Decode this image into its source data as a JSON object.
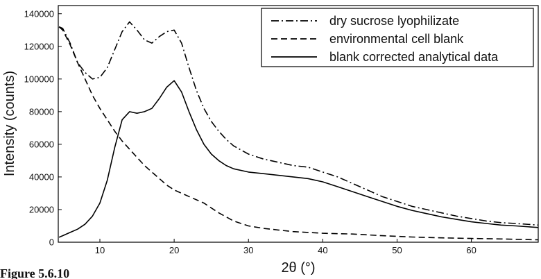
{
  "chart_data": {
    "type": "line",
    "title": "",
    "xlabel": "2θ (°)",
    "ylabel": "Intensity (counts)",
    "caption": "Figure 5.6.10",
    "xlim": [
      4.4,
      69
    ],
    "ylim": [
      0,
      145000
    ],
    "x_ticks": [
      10,
      20,
      30,
      40,
      50,
      60
    ],
    "y_ticks": [
      0,
      20000,
      40000,
      60000,
      80000,
      100000,
      120000,
      140000
    ],
    "x_tick_labels": [
      "10",
      "20",
      "30",
      "40",
      "50",
      "60"
    ],
    "y_tick_labels": [
      "0",
      "20000",
      "40000",
      "60000",
      "80000",
      "100000",
      "120000",
      "140000"
    ],
    "grid": false,
    "legend_position": "top-right",
    "series": [
      {
        "name": "dry sucrose lyophilizate",
        "style": "dashdot",
        "x": [
          4.5,
          5,
          6,
          7,
          8,
          9,
          10,
          11,
          12,
          13,
          14,
          15,
          16,
          17,
          18,
          19,
          20,
          21,
          22,
          23,
          24,
          25,
          26,
          27,
          28,
          30,
          32,
          34,
          36,
          38,
          40,
          42,
          44,
          46,
          48,
          50,
          52,
          54,
          56,
          58,
          60,
          62,
          64,
          66,
          69
        ],
        "y": [
          132000,
          131000,
          122000,
          110000,
          104000,
          100000,
          101000,
          107000,
          118000,
          129000,
          135000,
          130000,
          124000,
          122000,
          126000,
          129000,
          130000,
          122000,
          107000,
          93000,
          82000,
          74000,
          68000,
          63000,
          59000,
          54000,
          51000,
          49000,
          47000,
          46000,
          43000,
          40000,
          36000,
          32000,
          28000,
          25000,
          22000,
          20000,
          18000,
          16000,
          14500,
          13000,
          12000,
          11500,
          10500
        ]
      },
      {
        "name": "environmental cell blank",
        "style": "dashed",
        "x": [
          4.5,
          5,
          6,
          7,
          8,
          9,
          10,
          11,
          12,
          13,
          14,
          15,
          16,
          17,
          18,
          19,
          20,
          22,
          24,
          26,
          28,
          30,
          32,
          34,
          36,
          38,
          40,
          44,
          48,
          52,
          56,
          60,
          64,
          69
        ],
        "y": [
          132000,
          130000,
          121000,
          110000,
          100000,
          90000,
          82000,
          75000,
          68000,
          62000,
          57000,
          52000,
          47000,
          43000,
          39000,
          35000,
          32000,
          28000,
          24000,
          18000,
          13000,
          10000,
          8500,
          7500,
          6500,
          6000,
          5500,
          5000,
          4000,
          3200,
          2700,
          2300,
          2000,
          1500
        ]
      },
      {
        "name": "blank corrected analytical data",
        "style": "solid",
        "x": [
          4.5,
          5,
          6,
          7,
          8,
          9,
          10,
          11,
          12,
          13,
          14,
          15,
          16,
          17,
          18,
          19,
          20,
          21,
          22,
          23,
          24,
          25,
          26,
          27,
          28,
          30,
          32,
          34,
          36,
          38,
          40,
          42,
          44,
          46,
          48,
          50,
          52,
          54,
          56,
          58,
          60,
          62,
          64,
          66,
          69
        ],
        "y": [
          3000,
          4000,
          6000,
          8000,
          11000,
          16000,
          24000,
          38000,
          58000,
          75000,
          80000,
          79000,
          80000,
          82000,
          88000,
          95000,
          99000,
          92000,
          80000,
          69000,
          60000,
          54000,
          50000,
          47000,
          45000,
          43000,
          42000,
          41000,
          40000,
          39000,
          37000,
          34000,
          31000,
          28000,
          25000,
          22000,
          19500,
          17500,
          15500,
          14000,
          12500,
          11500,
          10500,
          10000,
          9000
        ]
      }
    ]
  }
}
